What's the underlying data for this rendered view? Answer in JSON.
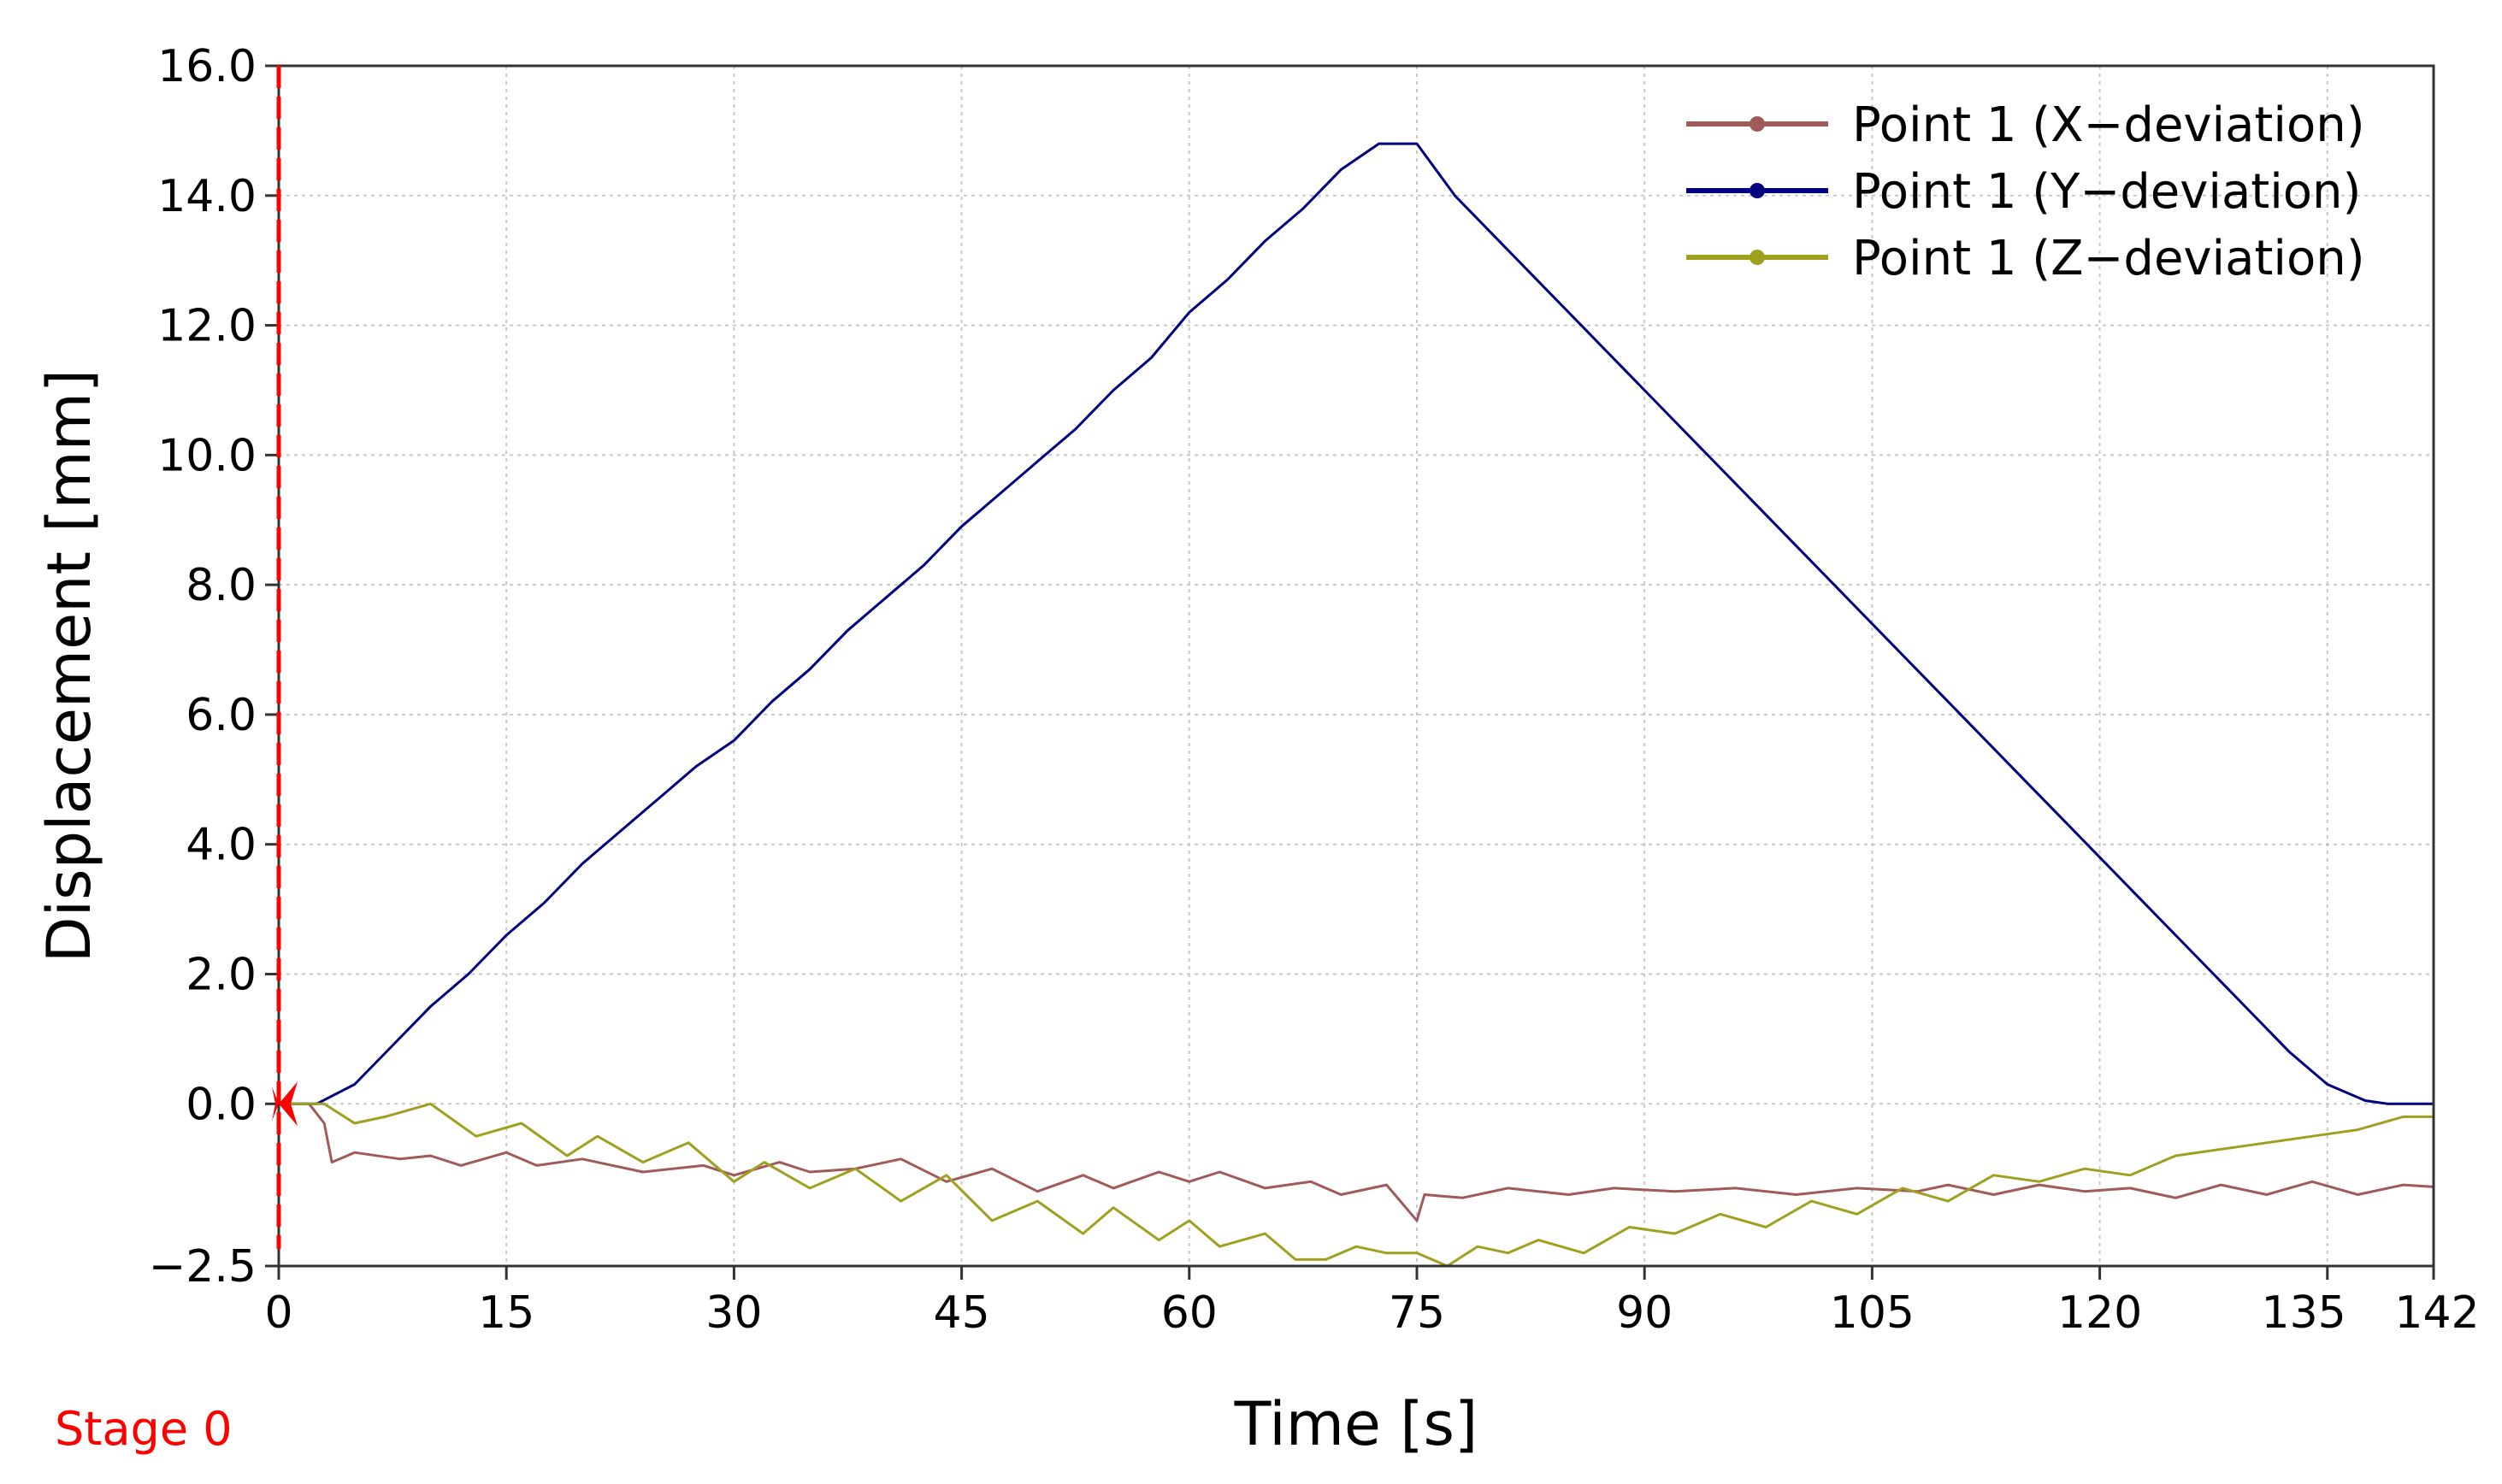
{
  "chart_data": {
    "type": "line",
    "title": "",
    "xlabel": "Time [s]",
    "ylabel": "Displacement [mm]",
    "xlim": [
      0,
      142
    ],
    "ylim": [
      -2.5,
      16.0
    ],
    "x_ticks": [
      0,
      15,
      30,
      45,
      60,
      75,
      90,
      105,
      120,
      135,
      142
    ],
    "x_tick_labels": [
      "0",
      "15",
      "30",
      "45",
      "60",
      "75",
      "90",
      "105",
      "120",
      "135",
      "142"
    ],
    "y_ticks": [
      -2.5,
      0.0,
      2.0,
      4.0,
      6.0,
      8.0,
      10.0,
      12.0,
      14.0,
      16.0
    ],
    "y_tick_labels": [
      "−2.5",
      "0.0",
      "2.0",
      "4.0",
      "6.0",
      "8.0",
      "10.0",
      "12.0",
      "14.0",
      "16.0"
    ],
    "grid": true,
    "legend_position": "top-right",
    "stage_label": "Stage 0",
    "stage_color": "#ff0000",
    "stage_x": 0,
    "series": [
      {
        "name": "Point 1 (X−deviation)",
        "color": "#a05a5a",
        "x": [
          0,
          2,
          3,
          3.5,
          5,
          8,
          10,
          12,
          15,
          17,
          20,
          24,
          28,
          30,
          33,
          35,
          38,
          41,
          44,
          47,
          50,
          53,
          55,
          58,
          60,
          62,
          65,
          68,
          70,
          73,
          75,
          75.5,
          78,
          81,
          85,
          88,
          92,
          96,
          100,
          104,
          108,
          110,
          113,
          116,
          119,
          122,
          125,
          128,
          131,
          134,
          137,
          140,
          142
        ],
        "y": [
          0.0,
          0.0,
          -0.3,
          -0.9,
          -0.75,
          -0.85,
          -0.8,
          -0.95,
          -0.75,
          -0.95,
          -0.85,
          -1.05,
          -0.95,
          -1.1,
          -0.9,
          -1.05,
          -1.0,
          -0.85,
          -1.2,
          -1.0,
          -1.35,
          -1.1,
          -1.3,
          -1.05,
          -1.2,
          -1.05,
          -1.3,
          -1.2,
          -1.4,
          -1.25,
          -1.8,
          -1.4,
          -1.45,
          -1.3,
          -1.4,
          -1.3,
          -1.35,
          -1.3,
          -1.4,
          -1.3,
          -1.35,
          -1.25,
          -1.4,
          -1.25,
          -1.35,
          -1.3,
          -1.45,
          -1.25,
          -1.4,
          -1.2,
          -1.4,
          -1.25,
          -1.28
        ]
      },
      {
        "name": "Point 1 (Y−deviation)",
        "color": "#000080",
        "x": [
          0,
          2.5,
          5,
          7.5,
          10,
          12.5,
          15,
          17.5,
          20,
          22.5,
          25,
          27.5,
          30,
          32.5,
          35,
          37.5,
          40,
          42.5,
          45,
          47.5,
          50,
          52.5,
          55,
          57.5,
          60,
          62.5,
          65,
          67.5,
          70,
          72.5,
          75,
          77.5,
          80,
          82.5,
          85,
          87.5,
          90,
          92.5,
          95,
          97.5,
          100,
          102.5,
          105,
          107.5,
          110,
          112.5,
          115,
          117.5,
          120,
          122.5,
          125,
          127.5,
          130,
          132.5,
          135,
          137.5,
          139,
          142
        ],
        "y": [
          0.0,
          0.0,
          0.3,
          0.9,
          1.5,
          2.0,
          2.6,
          3.1,
          3.7,
          4.2,
          4.7,
          5.2,
          5.6,
          6.2,
          6.7,
          7.3,
          7.8,
          8.3,
          8.9,
          9.4,
          9.9,
          10.4,
          11.0,
          11.5,
          12.2,
          12.7,
          13.3,
          13.8,
          14.4,
          14.8,
          14.8,
          14.0,
          13.4,
          12.8,
          12.2,
          11.6,
          11.0,
          10.4,
          9.8,
          9.2,
          8.6,
          8.0,
          7.4,
          6.8,
          6.2,
          5.6,
          5.0,
          4.4,
          3.8,
          3.2,
          2.6,
          2.0,
          1.4,
          0.8,
          0.3,
          0.05,
          0.0,
          0.0
        ],
        "interpolation": "smooth"
      },
      {
        "name": "Point 1 (Z−deviation)",
        "color": "#a0a020",
        "x": [
          0,
          3,
          5,
          7,
          10,
          13,
          16,
          19,
          21,
          24,
          27,
          30,
          32,
          35,
          38,
          41,
          44,
          47,
          50,
          53,
          55,
          58,
          60,
          62,
          65,
          67,
          69,
          71,
          73,
          75,
          77,
          79,
          81,
          83,
          86,
          89,
          92,
          95,
          98,
          101,
          104,
          107,
          110,
          113,
          116,
          119,
          122,
          125,
          128,
          131,
          134,
          137,
          140,
          142
        ],
        "y": [
          0.0,
          0.0,
          -0.3,
          -0.2,
          0.0,
          -0.5,
          -0.3,
          -0.8,
          -0.5,
          -0.9,
          -0.6,
          -1.2,
          -0.9,
          -1.3,
          -1.0,
          -1.5,
          -1.1,
          -1.8,
          -1.5,
          -2.0,
          -1.6,
          -2.1,
          -1.8,
          -2.2,
          -2.0,
          -2.4,
          -2.4,
          -2.2,
          -2.3,
          -2.3,
          -2.5,
          -2.2,
          -2.3,
          -2.1,
          -2.3,
          -1.9,
          -2.0,
          -1.7,
          -1.9,
          -1.5,
          -1.7,
          -1.3,
          -1.5,
          -1.1,
          -1.2,
          -1.0,
          -1.1,
          -0.8,
          -0.7,
          -0.6,
          -0.5,
          -0.4,
          -0.2,
          -0.2
        ]
      }
    ]
  }
}
